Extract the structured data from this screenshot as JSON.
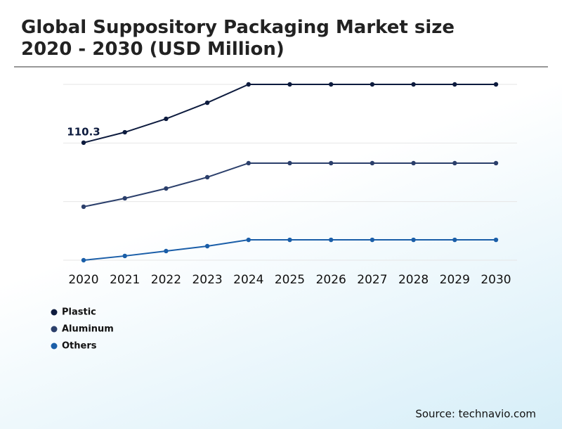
{
  "chart_data": {
    "type": "line",
    "title": "Global Suppository Packaging Market size 2020 - 2030 (USD Million)",
    "categories": [
      "2020",
      "2021",
      "2022",
      "2023",
      "2024",
      "2025",
      "2026",
      "2027",
      "2028",
      "2029",
      "2030"
    ],
    "series": [
      {
        "name": "Plastic",
        "color": "#0d1b3e",
        "values": [
          110.3,
          120.1,
          132.7,
          147.8,
          165,
          165,
          165,
          165,
          165,
          165,
          165
        ]
      },
      {
        "name": "Aluminum",
        "color": "#2b3f6b",
        "values": [
          50.2,
          58.1,
          67.3,
          77.9,
          91.1,
          91.1,
          91.1,
          91.1,
          91.1,
          91.1,
          91.1
        ]
      },
      {
        "name": "Others",
        "color": "#1a5ea8",
        "values": [
          0,
          4,
          8.6,
          13.2,
          19.1,
          19.1,
          19.1,
          19.1,
          19.1,
          19.1,
          19.1
        ]
      }
    ],
    "ylim": [
      0,
      165
    ],
    "yticks": [
      0,
      55,
      110,
      165
    ],
    "grid": true,
    "source": "Source: technavio.com"
  }
}
